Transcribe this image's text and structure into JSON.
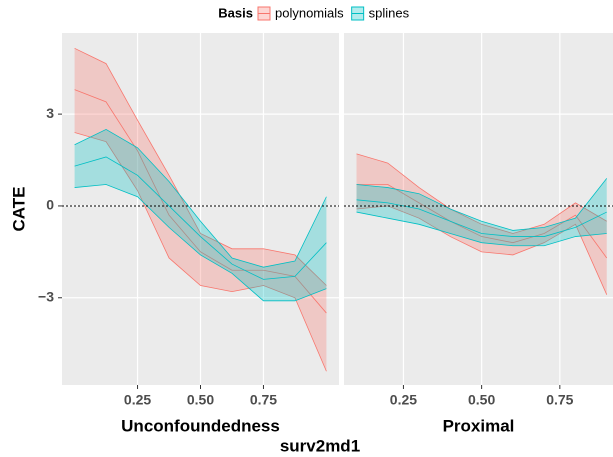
{
  "figure": {
    "ylabel": "CATE",
    "xlabel": "surv2md1",
    "legend_title": "Basis"
  },
  "chart_data": [
    {
      "type": "ribbon",
      "title": "Unconfoundedness",
      "x": [
        0,
        0.125,
        0.25,
        0.375,
        0.5,
        0.625,
        0.75,
        0.875,
        1
      ],
      "xlim": [
        -0.05,
        1.05
      ],
      "xticks": [
        0.25,
        {
          "value": 0.5,
          "label": "0.50"
        },
        0.75
      ],
      "ylim": [
        -5.85,
        5.65
      ],
      "yticks": [
        {
          "value": -3,
          "label": "−3"
        },
        0,
        3
      ],
      "hline": 0,
      "grid": true,
      "series": [
        {
          "name": "polynomials",
          "color": "#F8766D",
          "values": [
            3.8,
            3.4,
            1.8,
            -0.3,
            -1.5,
            -2.1,
            -2.1,
            -2.3,
            -3.5
          ],
          "lower": [
            2.4,
            2.1,
            0.5,
            -1.7,
            -2.6,
            -2.8,
            -2.6,
            -3.0,
            -5.4
          ],
          "upper": [
            5.15,
            4.65,
            2.8,
            1.0,
            -0.9,
            -1.4,
            -1.4,
            -1.6,
            -2.6
          ]
        },
        {
          "name": "splines",
          "color": "#00BFC4",
          "values": [
            1.3,
            1.6,
            1.0,
            0.0,
            -1.0,
            -1.9,
            -2.4,
            -2.3,
            -1.2
          ],
          "lower": [
            0.6,
            0.7,
            0.3,
            -0.7,
            -1.6,
            -2.2,
            -3.1,
            -3.1,
            -2.7
          ],
          "upper": [
            2.0,
            2.5,
            1.9,
            0.8,
            -0.5,
            -1.7,
            -2.0,
            -1.8,
            0.3
          ]
        }
      ]
    },
    {
      "type": "ribbon",
      "title": "Proximal",
      "x": [
        0.1,
        0.2,
        0.3,
        0.4,
        0.5,
        0.6,
        0.7,
        0.8,
        0.9
      ],
      "xlim": [
        0.06,
        0.92
      ],
      "xticks": [
        0.25,
        {
          "value": 0.5,
          "label": "0.50"
        },
        0.75
      ],
      "ylim": [
        -5.85,
        5.65
      ],
      "yticks": [
        {
          "value": -3,
          "label": "−3"
        },
        0,
        3
      ],
      "hline": 0,
      "grid": true,
      "series": [
        {
          "name": "polynomials",
          "color": "#F8766D",
          "values": [
            0.7,
            0.7,
            0.1,
            -0.5,
            -1.0,
            -1.2,
            -0.9,
            -0.3,
            -1.7
          ],
          "lower": [
            -0.1,
            0.0,
            -0.4,
            -1.0,
            -1.5,
            -1.6,
            -1.2,
            -0.6,
            -2.9
          ],
          "upper": [
            1.7,
            1.4,
            0.6,
            -0.1,
            -0.6,
            -0.9,
            -0.6,
            0.1,
            -0.5
          ]
        },
        {
          "name": "splines",
          "color": "#00BFC4",
          "values": [
            0.2,
            0.1,
            -0.1,
            -0.5,
            -0.9,
            -1.0,
            -1.0,
            -0.7,
            -0.2
          ],
          "lower": [
            -0.2,
            -0.4,
            -0.6,
            -0.9,
            -1.2,
            -1.3,
            -1.3,
            -1.0,
            -0.9
          ],
          "upper": [
            0.7,
            0.6,
            0.4,
            -0.1,
            -0.5,
            -0.8,
            -0.7,
            -0.4,
            0.9
          ]
        }
      ]
    }
  ]
}
